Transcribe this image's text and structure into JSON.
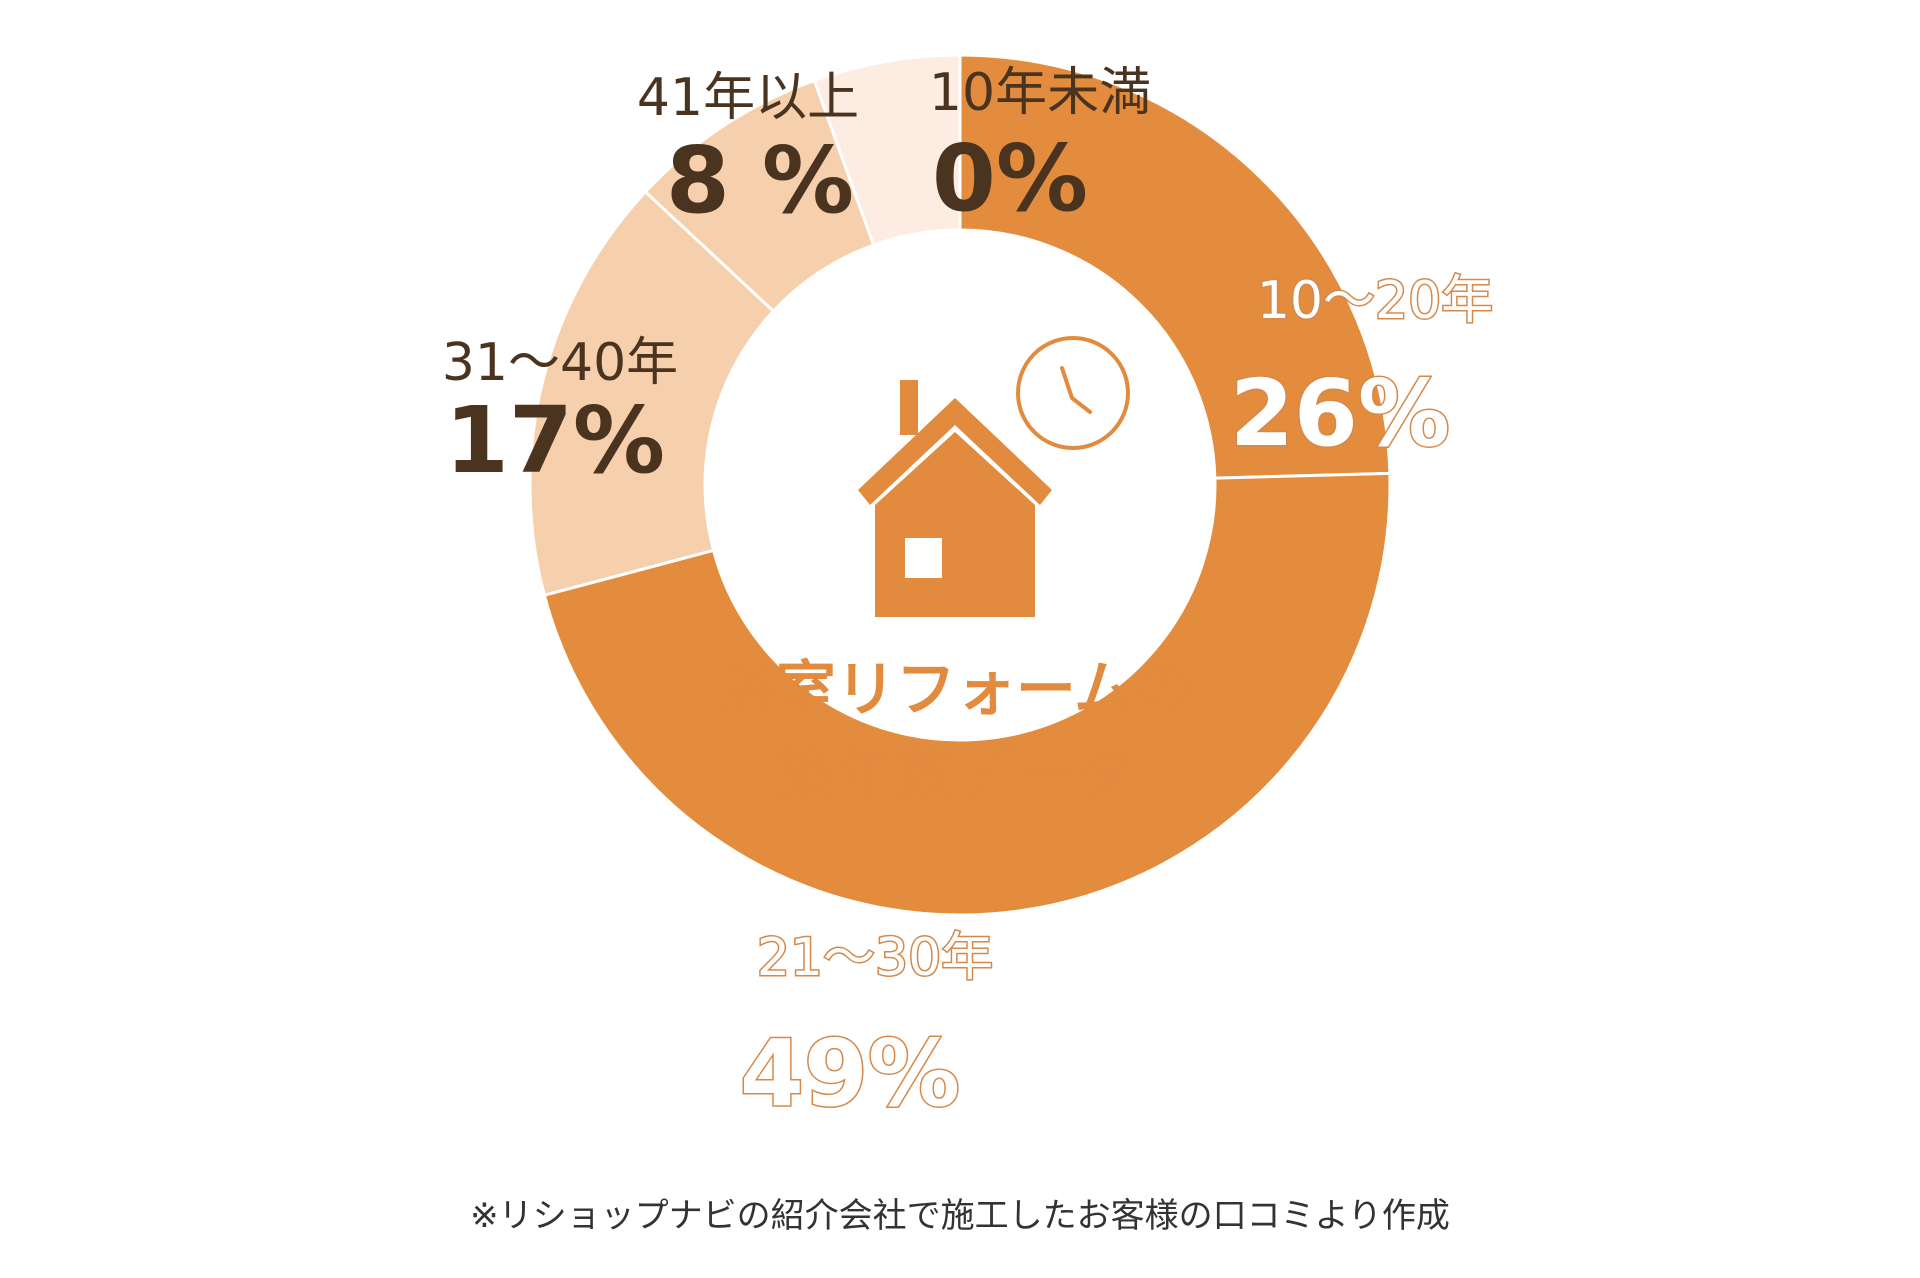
{
  "chart_data": {
    "type": "pie",
    "categories": [
      "10年未満",
      "10〜20年",
      "21〜30年",
      "31〜40年",
      "41年以上"
    ],
    "values": [
      0,
      26,
      49,
      17,
      8
    ],
    "value_labels": [
      "0%",
      "26%",
      "49%",
      "17%",
      "8 %"
    ],
    "colors": [
      "#fcece2",
      "#e38c3e",
      "#e38c3e",
      "#f6cfad",
      "#f6cfad"
    ],
    "center_title_line1": "浴室リフォームの",
    "center_title_line2": "築年数データ"
  },
  "icons": {
    "house": "house-icon",
    "clock": "clock-icon"
  },
  "footnote": "※リショップナビの紹介会社で施工したお客様の口コミより作成"
}
